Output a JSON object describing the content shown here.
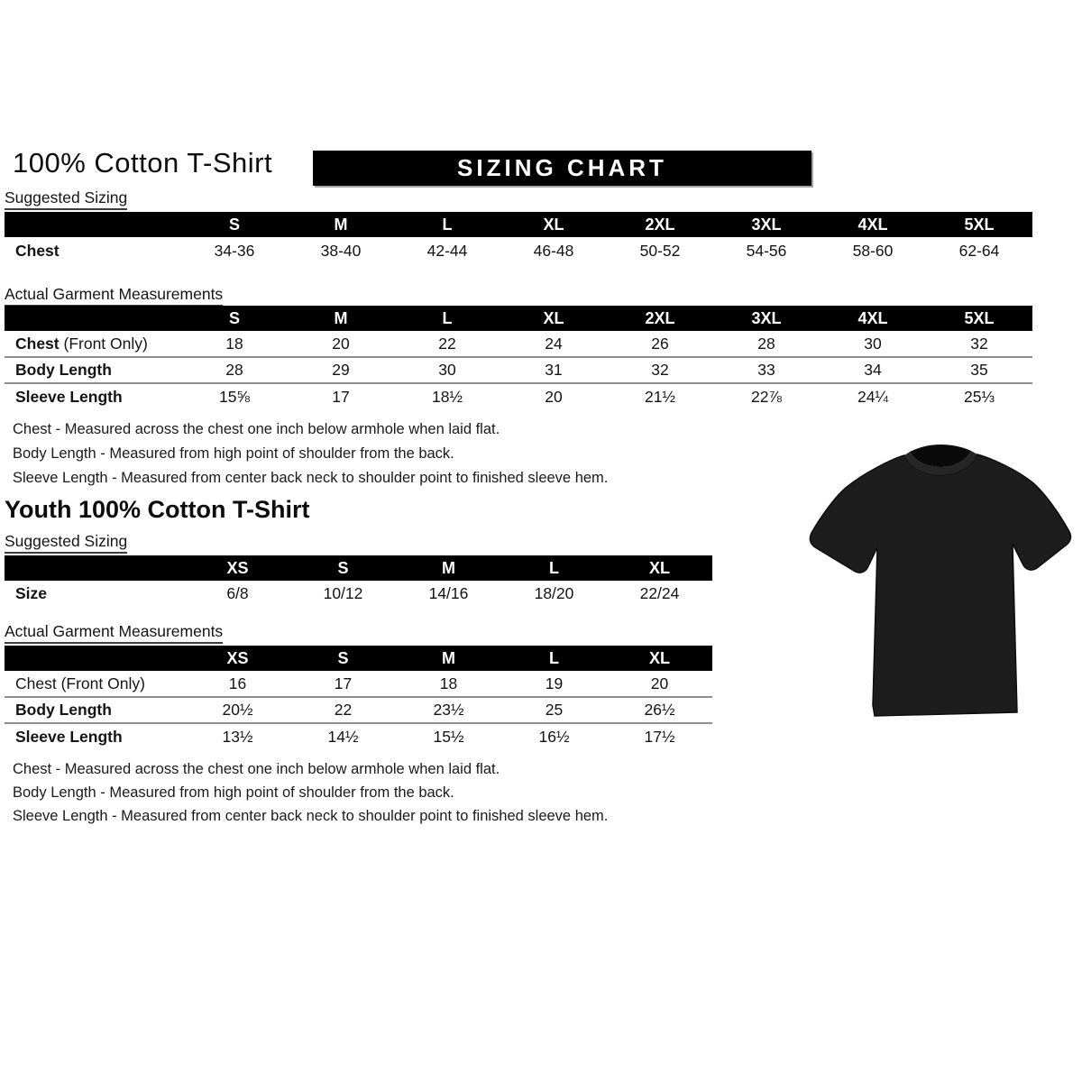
{
  "colors": {
    "banner_bg": "#000000",
    "banner_text": "#ffffff",
    "table_header_bg": "#000000",
    "table_header_text": "#ffffff",
    "tshirt_body": "#1d1d1d",
    "tshirt_outline": "#0e0e0e",
    "tshirt_collar": "#262626",
    "tshirt_neck": "#0a0a0a"
  },
  "banner": {
    "label": "SIZING CHART"
  },
  "adult": {
    "title": "100% Cotton T-Shirt",
    "suggested_label": "Suggested Sizing",
    "suggested_table": {
      "columns": [
        "S",
        "M",
        "L",
        "XL",
        "2XL",
        "3XL",
        "4XL",
        "5XL"
      ],
      "rows": [
        {
          "label": "Chest",
          "suffix": "",
          "label_bold": true,
          "values": [
            "34-36",
            "38-40",
            "42-44",
            "46-48",
            "50-52",
            "54-56",
            "58-60",
            "62-64"
          ]
        }
      ]
    },
    "actual_label": "Actual Garment Measurements",
    "actual_table": {
      "columns": [
        "S",
        "M",
        "L",
        "XL",
        "2XL",
        "3XL",
        "4XL",
        "5XL"
      ],
      "rows": [
        {
          "label": "Chest",
          "suffix": " (Front Only)",
          "label_bold": true,
          "values": [
            "18",
            "20",
            "22",
            "24",
            "26",
            "28",
            "30",
            "32"
          ]
        },
        {
          "label": "Body Length",
          "suffix": "",
          "label_bold": true,
          "values": [
            "28",
            "29",
            "30",
            "31",
            "32",
            "33",
            "34",
            "35"
          ]
        },
        {
          "label": "Sleeve Length",
          "suffix": "",
          "label_bold": true,
          "values": [
            "15⅝",
            "17",
            "18½",
            "20",
            "21½",
            "22⅞",
            "24¼",
            "25⅓"
          ]
        }
      ]
    },
    "notes": [
      "Chest - Measured across the chest one inch below armhole when laid flat.",
      "Body Length - Measured from high point of shoulder from the back.",
      "Sleeve Length - Measured from center back neck to shoulder point to finished sleeve hem."
    ]
  },
  "youth": {
    "title": "Youth 100% Cotton T-Shirt",
    "suggested_label": "Suggested Sizing",
    "suggested_table": {
      "columns": [
        "XS",
        "S",
        "M",
        "L",
        "XL"
      ],
      "rows": [
        {
          "label": "Size",
          "suffix": "",
          "label_bold": true,
          "values": [
            "6/8",
            "10/12",
            "14/16",
            "18/20",
            "22/24"
          ]
        }
      ]
    },
    "actual_label": "Actual Garment Measurements",
    "actual_table": {
      "columns": [
        "XS",
        "S",
        "M",
        "L",
        "XL"
      ],
      "rows": [
        {
          "label": "Chest (Front Only)",
          "suffix": "",
          "label_bold": false,
          "values": [
            "16",
            "17",
            "18",
            "19",
            "20"
          ]
        },
        {
          "label": "Body Length",
          "suffix": "",
          "label_bold": true,
          "values": [
            "20½",
            "22",
            "23½",
            "25",
            "26½"
          ]
        },
        {
          "label": "Sleeve Length",
          "suffix": "",
          "label_bold": true,
          "values": [
            "13½",
            "14½",
            "15½",
            "16½",
            "17½"
          ]
        }
      ]
    },
    "notes": [
      "Chest - Measured across the chest one inch below armhole when laid flat.",
      "Body Length - Measured from high point of shoulder from the back.",
      "Sleeve Length - Measured from center back neck to shoulder point to finished sleeve hem."
    ]
  },
  "tshirt": {
    "description": "Black short-sleeve crew-neck t-shirt"
  }
}
